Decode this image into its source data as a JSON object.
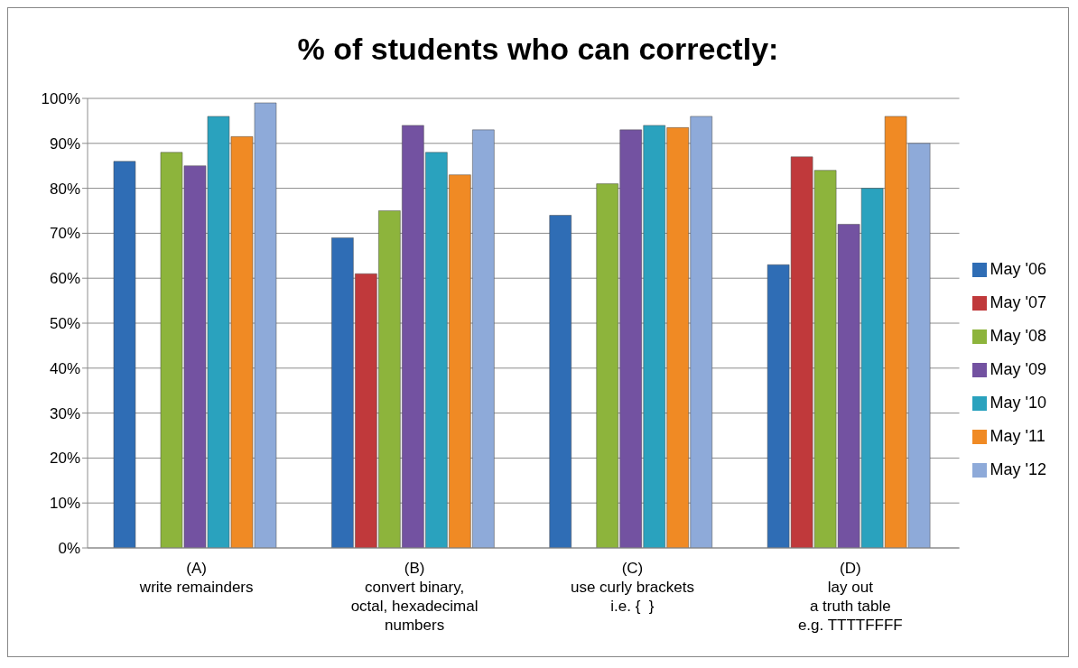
{
  "chart_data": {
    "type": "bar",
    "title": "% of students who can correctly:",
    "categories": [
      "(A)\nwrite remainders",
      "(B)\nconvert binary,\noctal, hexadecimal\nnumbers",
      "(C)\nuse curly brackets\ni.e. {  }",
      "(D)\nlay out\na truth table\ne.g. TTTTFFFF"
    ],
    "series": [
      {
        "name": "May '06",
        "color": "#2f6db5",
        "values": [
          86,
          69,
          74,
          63
        ]
      },
      {
        "name": "May '07",
        "color": "#c0393b",
        "values": [
          null,
          61,
          null,
          87
        ]
      },
      {
        "name": "May '08",
        "color": "#8db43c",
        "values": [
          88,
          75,
          81,
          84
        ]
      },
      {
        "name": "May '09",
        "color": "#7352a1",
        "values": [
          85,
          94,
          93,
          72
        ]
      },
      {
        "name": "May '10",
        "color": "#2aa2be",
        "values": [
          96,
          88,
          94,
          80
        ]
      },
      {
        "name": "May '11",
        "color": "#f08a24",
        "values": [
          91.5,
          83,
          93.5,
          96
        ]
      },
      {
        "name": "May '12",
        "color": "#8eaad9",
        "values": [
          99,
          93,
          96,
          90
        ]
      }
    ],
    "ylim": [
      0,
      100
    ],
    "yticks": [
      {
        "value": 0,
        "label": "0%"
      },
      {
        "value": 10,
        "label": "10%"
      },
      {
        "value": 20,
        "label": "20%"
      },
      {
        "value": 30,
        "label": "30%"
      },
      {
        "value": 40,
        "label": "40%"
      },
      {
        "value": 50,
        "label": "50%"
      },
      {
        "value": 60,
        "label": "60%"
      },
      {
        "value": 70,
        "label": "70%"
      },
      {
        "value": 80,
        "label": "80%"
      },
      {
        "value": 90,
        "label": "90%"
      },
      {
        "value": 100,
        "label": "100%"
      }
    ],
    "grid": "y",
    "legend": "right"
  }
}
